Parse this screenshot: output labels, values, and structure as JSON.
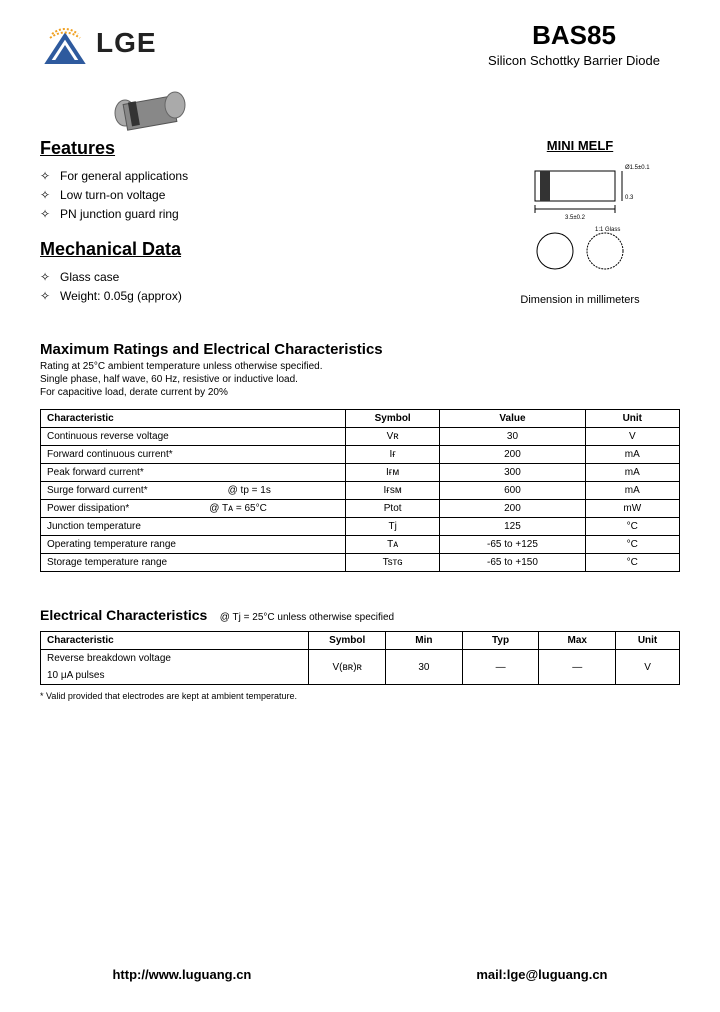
{
  "logo_text": "LGE",
  "part_number": "BAS85",
  "part_desc": "Silicon Schottky Barrier Diode",
  "features_title": "Features",
  "features": [
    "For general applications",
    "Low turn-on voltage",
    "PN junction guard ring"
  ],
  "mech_title": "Mechanical Data",
  "mech_items": [
    "Glass case",
    "Weight: 0.05g (approx)"
  ],
  "package_title": "MINI MELF",
  "dim_text": "Dimension in millimeters",
  "dim_length": "3.5 ± 0.2",
  "dim_dia": "Ø1.5 ± 0.1",
  "dim_band": "0.3",
  "ratings_title": "Maximum Ratings and Electrical Characteristics",
  "ratings_desc": "Rating at 25°C ambient temperature unless otherwise specified.\nSingle phase, half wave, 60 Hz, resistive or inductive load.\nFor capacitive load, derate current by 20%",
  "ratings_headers": [
    "Characteristic",
    "Symbol",
    "Value",
    "Unit"
  ],
  "ratings_rows": [
    {
      "char": "Continuous reverse voltage",
      "cond": "",
      "sym": "Vʀ",
      "val": "30",
      "unit": "V"
    },
    {
      "char": "Forward continuous current*",
      "cond": "",
      "sym": "Iғ",
      "val": "200",
      "unit": "mA"
    },
    {
      "char": "Peak forward current*",
      "cond": "",
      "sym": "Iғᴍ",
      "val": "300",
      "unit": "mA"
    },
    {
      "char": "Surge forward current*",
      "cond": "@ tp = 1s",
      "sym": "Iғsᴍ",
      "val": "600",
      "unit": "mA"
    },
    {
      "char": "Power dissipation*",
      "cond": "@ Tᴀ = 65°C",
      "sym": "Ptot",
      "val": "200",
      "unit": "mW"
    },
    {
      "char": "Junction temperature",
      "cond": "",
      "sym": "Tj",
      "val": "125",
      "unit": "°C"
    },
    {
      "char": "Operating temperature range",
      "cond": "",
      "sym": "Tᴀ",
      "val": "-65 to +125",
      "unit": "°C"
    },
    {
      "char": "Storage temperature range",
      "cond": "",
      "sym": "Tsᴛɢ",
      "val": "-65 to +150",
      "unit": "°C"
    }
  ],
  "ec_title": "Electrical Characteristics",
  "ec_cond": "@ Tj = 25°C unless otherwise specified",
  "ec_headers": [
    "Characteristic",
    "Symbol",
    "Min",
    "Typ",
    "Max",
    "Unit"
  ],
  "ec_row": {
    "char": "Reverse breakdown voltage",
    "sub": "10 μA pulses",
    "sym": "V(ʙʀ)ʀ",
    "min": "30",
    "typ": "—",
    "max": "—",
    "unit": "V"
  },
  "footnote": "* Valid provided that electrodes are kept at ambient temperature.",
  "footer_url": "http://www.luguang.cn",
  "footer_mail": "mail:lge@luguang.cn",
  "colors": {
    "logo_blue": "#2e5a9e",
    "logo_orange": "#f0a020",
    "text": "#000000",
    "border": "#000000"
  }
}
